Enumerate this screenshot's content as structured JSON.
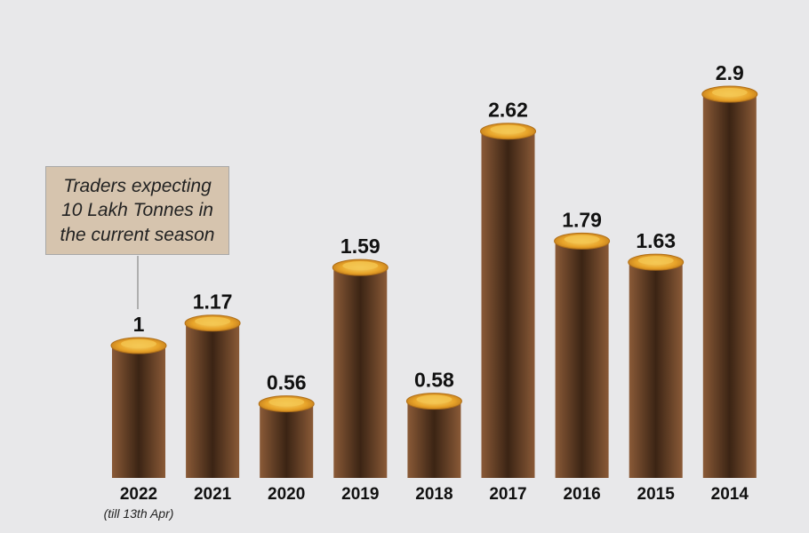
{
  "chart_data": {
    "type": "bar",
    "categories": [
      "2022",
      "2021",
      "2020",
      "2019",
      "2018",
      "2017",
      "2016",
      "2015",
      "2014"
    ],
    "category_subtitles": [
      "(till 13th Apr)",
      "",
      "",
      "",
      "",
      "",
      "",
      "",
      ""
    ],
    "values": [
      1,
      1.17,
      0.56,
      1.59,
      0.58,
      2.62,
      1.79,
      1.63,
      2.9
    ],
    "value_labels": [
      "1",
      "1.17",
      "0.56",
      "1.59",
      "0.58",
      "2.62",
      "1.79",
      "1.63",
      "2.9"
    ],
    "annotation": {
      "text": "Traders expecting 10 Lakh Tonnes in the current season",
      "target_category": "2022"
    },
    "ylim": [
      0,
      3
    ],
    "grid": false,
    "colors": {
      "bar_dark": "#3b2414",
      "bar_light": "#8a5a37",
      "grain_top": "#e8a429",
      "callout_bg": "#d6c4ae",
      "background": "#e8e8ea"
    }
  }
}
